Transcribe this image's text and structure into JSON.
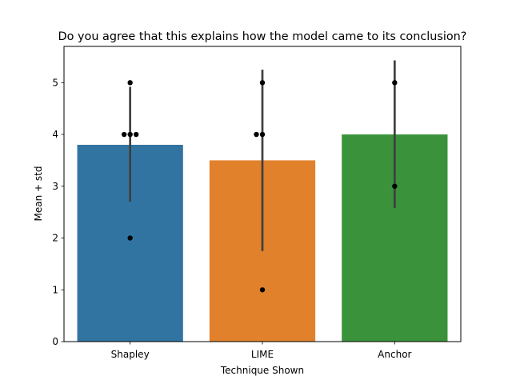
{
  "chart_data": {
    "type": "bar",
    "title": "Do you agree that this explains how the model came to its conclusion?",
    "xlabel": "Technique Shown",
    "ylabel": "Mean + std",
    "categories": [
      "Shapley",
      "LIME",
      "Anchor"
    ],
    "values": [
      3.8,
      3.5,
      4.0
    ],
    "error": [
      {
        "low": 2.7,
        "high": 4.92
      },
      {
        "low": 1.75,
        "high": 5.25
      },
      {
        "low": 2.58,
        "high": 5.43
      }
    ],
    "points": [
      [
        {
          "value": 4,
          "offset": -1
        },
        {
          "value": 4,
          "offset": 0
        },
        {
          "value": 4,
          "offset": 1
        },
        {
          "value": 5,
          "offset": 0
        },
        {
          "value": 2,
          "offset": 0
        }
      ],
      [
        {
          "value": 4,
          "offset": -1
        },
        {
          "value": 4,
          "offset": 0
        },
        {
          "value": 5,
          "offset": 0
        },
        {
          "value": 1,
          "offset": 0
        }
      ],
      [
        {
          "value": 5,
          "offset": 0
        },
        {
          "value": 3,
          "offset": 0
        }
      ]
    ],
    "colors": [
      "#3274a1",
      "#e1812c",
      "#3a923a"
    ],
    "point_color": "#000000",
    "errorbar_color": "#3f3f3f",
    "yticks": [
      0,
      1,
      2,
      3,
      4,
      5
    ],
    "ylim": [
      0,
      5.7
    ],
    "grid": false
  }
}
